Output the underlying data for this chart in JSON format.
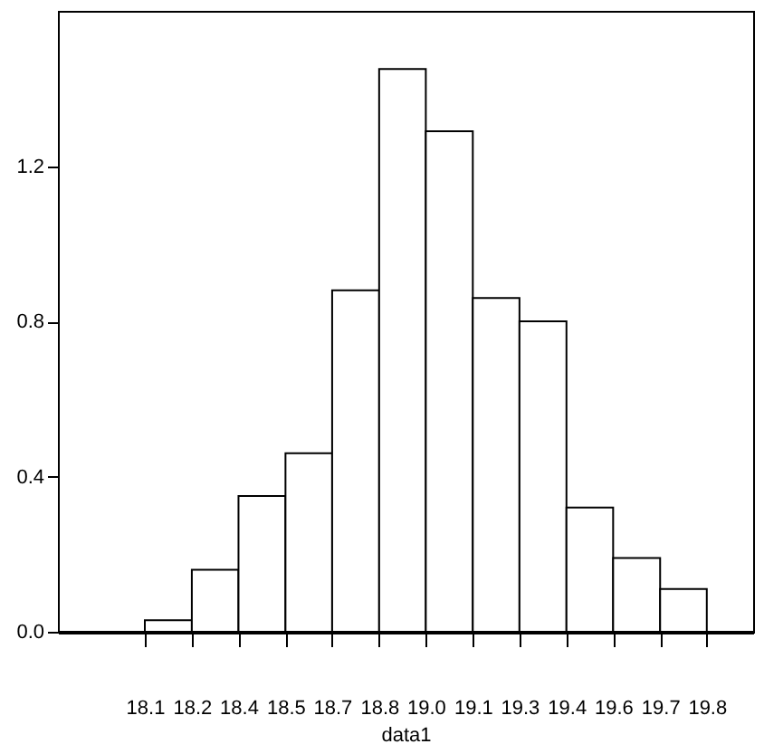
{
  "chart_data": {
    "type": "histogram",
    "xlabel": "data1",
    "bins": [
      18.1,
      18.246,
      18.391,
      18.537,
      18.682,
      18.828,
      18.973,
      19.119,
      19.264,
      19.41,
      19.555,
      19.701,
      19.846
    ],
    "values": [
      0.03,
      0.16,
      0.35,
      0.46,
      0.88,
      1.45,
      1.29,
      0.86,
      0.8,
      0.32,
      0.19,
      0.11
    ],
    "color": "#ffffff",
    "xlim": [
      17.83,
      19.99
    ],
    "xticks": [
      {
        "value": 18.1,
        "label": "18.1"
      },
      {
        "value": 18.246,
        "label": "18.2"
      },
      {
        "value": 18.391,
        "label": "18.4"
      },
      {
        "value": 18.537,
        "label": "18.5"
      },
      {
        "value": 18.682,
        "label": "18.7"
      },
      {
        "value": 18.828,
        "label": "18.8"
      },
      {
        "value": 18.973,
        "label": "19.0"
      },
      {
        "value": 19.119,
        "label": "19.1"
      },
      {
        "value": 19.264,
        "label": "19.3"
      },
      {
        "value": 19.41,
        "label": "19.4"
      },
      {
        "value": 19.555,
        "label": "19.6"
      },
      {
        "value": 19.701,
        "label": "19.7"
      },
      {
        "value": 19.846,
        "label": "19.8"
      }
    ],
    "ylim": [
      0,
      1.6
    ],
    "yticks": [
      {
        "value": 0,
        "label": "0.0"
      },
      {
        "value": 0.4,
        "label": "0.4"
      },
      {
        "value": 0.8,
        "label": "0.8"
      },
      {
        "value": 1.2,
        "label": "1.2"
      }
    ],
    "grid": false
  }
}
